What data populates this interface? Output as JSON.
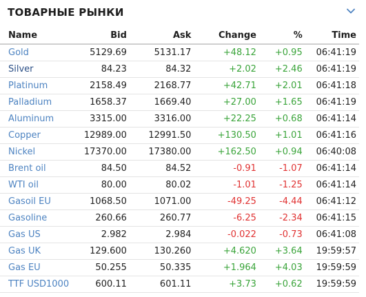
{
  "header": {
    "title": "ТОВАРНЫЕ РЫНКИ",
    "toggle_icon": "chevron-down-icon"
  },
  "columns": {
    "name": "Name",
    "bid": "Bid",
    "ask": "Ask",
    "change": "Change",
    "percent": "%",
    "time": "Time"
  },
  "colors": {
    "link": "#4d83c1",
    "link_active": "#2b4f86",
    "positive": "#3aa43a",
    "negative": "#e03131"
  },
  "rows": [
    {
      "name": "Gold",
      "bid": "5129.69",
      "ask": "5131.17",
      "change": "+48.12",
      "percent": "+0.95",
      "time": "06:41:19",
      "dir": "up"
    },
    {
      "name": "Silver",
      "bid": "84.23",
      "ask": "84.32",
      "change": "+2.02",
      "percent": "+2.46",
      "time": "06:41:19",
      "dir": "up",
      "active": true
    },
    {
      "name": "Platinum",
      "bid": "2158.49",
      "ask": "2168.77",
      "change": "+42.71",
      "percent": "+2.01",
      "time": "06:41:18",
      "dir": "up"
    },
    {
      "name": "Palladium",
      "bid": "1658.37",
      "ask": "1669.40",
      "change": "+27.00",
      "percent": "+1.65",
      "time": "06:41:19",
      "dir": "up"
    },
    {
      "name": "Aluminum",
      "bid": "3315.00",
      "ask": "3316.00",
      "change": "+22.25",
      "percent": "+0.68",
      "time": "06:41:14",
      "dir": "up"
    },
    {
      "name": "Copper",
      "bid": "12989.00",
      "ask": "12991.50",
      "change": "+130.50",
      "percent": "+1.01",
      "time": "06:41:16",
      "dir": "up"
    },
    {
      "name": "Nickel",
      "bid": "17370.00",
      "ask": "17380.00",
      "change": "+162.50",
      "percent": "+0.94",
      "time": "06:40:08",
      "dir": "up"
    },
    {
      "name": "Brent oil",
      "bid": "84.50",
      "ask": "84.52",
      "change": "-0.91",
      "percent": "-1.07",
      "time": "06:41:14",
      "dir": "down"
    },
    {
      "name": "WTI oil",
      "bid": "80.00",
      "ask": "80.02",
      "change": "-1.01",
      "percent": "-1.25",
      "time": "06:41:14",
      "dir": "down"
    },
    {
      "name": "Gasoil EU",
      "bid": "1068.50",
      "ask": "1071.00",
      "change": "-49.25",
      "percent": "-4.44",
      "time": "06:41:12",
      "dir": "down"
    },
    {
      "name": "Gasoline",
      "bid": "260.66",
      "ask": "260.77",
      "change": "-6.25",
      "percent": "-2.34",
      "time": "06:41:15",
      "dir": "down"
    },
    {
      "name": "Gas US",
      "bid": "2.982",
      "ask": "2.984",
      "change": "-0.022",
      "percent": "-0.73",
      "time": "06:41:08",
      "dir": "down"
    },
    {
      "name": "Gas UK",
      "bid": "129.600",
      "ask": "130.260",
      "change": "+4.620",
      "percent": "+3.64",
      "time": "19:59:57",
      "dir": "up"
    },
    {
      "name": "Gas EU",
      "bid": "50.255",
      "ask": "50.335",
      "change": "+1.964",
      "percent": "+4.03",
      "time": "19:59:59",
      "dir": "up"
    },
    {
      "name": "TTF USD1000",
      "bid": "600.11",
      "ask": "601.11",
      "change": "+3.73",
      "percent": "+0.62",
      "time": "19:59:59",
      "dir": "up"
    }
  ]
}
